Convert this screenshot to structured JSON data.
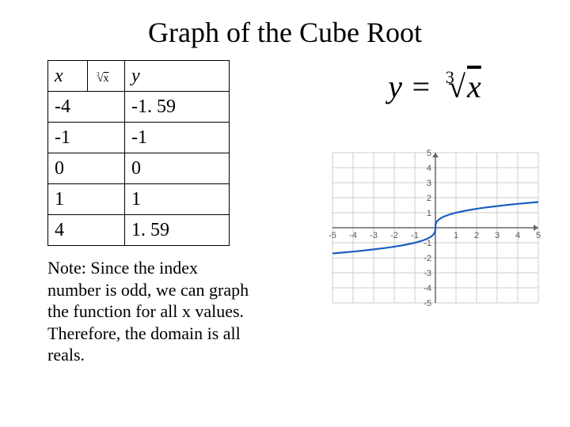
{
  "title": "Graph of the Cube Root",
  "table": {
    "header_x": "x",
    "header_root_index": "3",
    "header_root_radicand": "x",
    "header_y": "y",
    "rows": [
      {
        "x": "-4",
        "y": "-1. 59"
      },
      {
        "x": "-1",
        "y": "-1"
      },
      {
        "x": "0",
        "y": "0"
      },
      {
        "x": "1",
        "y": "1"
      },
      {
        "x": "4",
        "y": "1. 59"
      }
    ]
  },
  "equation": {
    "lhs": "y",
    "eq": " = ",
    "root_index": "3",
    "radicand": "x"
  },
  "note": "Note:  Since the index number is odd, we can graph the function for all x values.  Therefore, the domain is all reals.",
  "chart": {
    "type": "line",
    "xlim": [
      -5,
      5
    ],
    "ylim": [
      -5,
      5
    ],
    "xticks": [
      -5,
      -4,
      -3,
      -2,
      -1,
      1,
      2,
      3,
      4,
      5
    ],
    "yticks": [
      -5,
      -4,
      -3,
      -2,
      -1,
      1,
      2,
      3,
      4,
      5
    ],
    "grid_color": "#cccccc",
    "axis_color": "#666666",
    "background_color": "#ffffff",
    "curve_color": "#1b5fc2",
    "curve_width": 2.2,
    "label_fontsize": 11,
    "series": {
      "samples": [
        {
          "x": -5.0,
          "y": -1.71
        },
        {
          "x": -4.5,
          "y": -1.651
        },
        {
          "x": -4.0,
          "y": -1.5874
        },
        {
          "x": -3.5,
          "y": -1.5183
        },
        {
          "x": -3.0,
          "y": -1.4422
        },
        {
          "x": -2.5,
          "y": -1.3572
        },
        {
          "x": -2.0,
          "y": -1.2599
        },
        {
          "x": -1.5,
          "y": -1.1447
        },
        {
          "x": -1.0,
          "y": -1.0
        },
        {
          "x": -0.7,
          "y": -0.8879
        },
        {
          "x": -0.4,
          "y": -0.7368
        },
        {
          "x": -0.2,
          "y": -0.5848
        },
        {
          "x": -0.1,
          "y": -0.4642
        },
        {
          "x": -0.05,
          "y": -0.3684
        },
        {
          "x": -0.01,
          "y": -0.2154
        },
        {
          "x": 0.0,
          "y": 0.0
        },
        {
          "x": 0.01,
          "y": 0.2154
        },
        {
          "x": 0.05,
          "y": 0.3684
        },
        {
          "x": 0.1,
          "y": 0.4642
        },
        {
          "x": 0.2,
          "y": 0.5848
        },
        {
          "x": 0.4,
          "y": 0.7368
        },
        {
          "x": 0.7,
          "y": 0.8879
        },
        {
          "x": 1.0,
          "y": 1.0
        },
        {
          "x": 1.5,
          "y": 1.1447
        },
        {
          "x": 2.0,
          "y": 1.2599
        },
        {
          "x": 2.5,
          "y": 1.3572
        },
        {
          "x": 3.0,
          "y": 1.4422
        },
        {
          "x": 3.5,
          "y": 1.5183
        },
        {
          "x": 4.0,
          "y": 1.5874
        },
        {
          "x": 4.5,
          "y": 1.651
        },
        {
          "x": 5.0,
          "y": 1.71
        }
      ]
    }
  }
}
